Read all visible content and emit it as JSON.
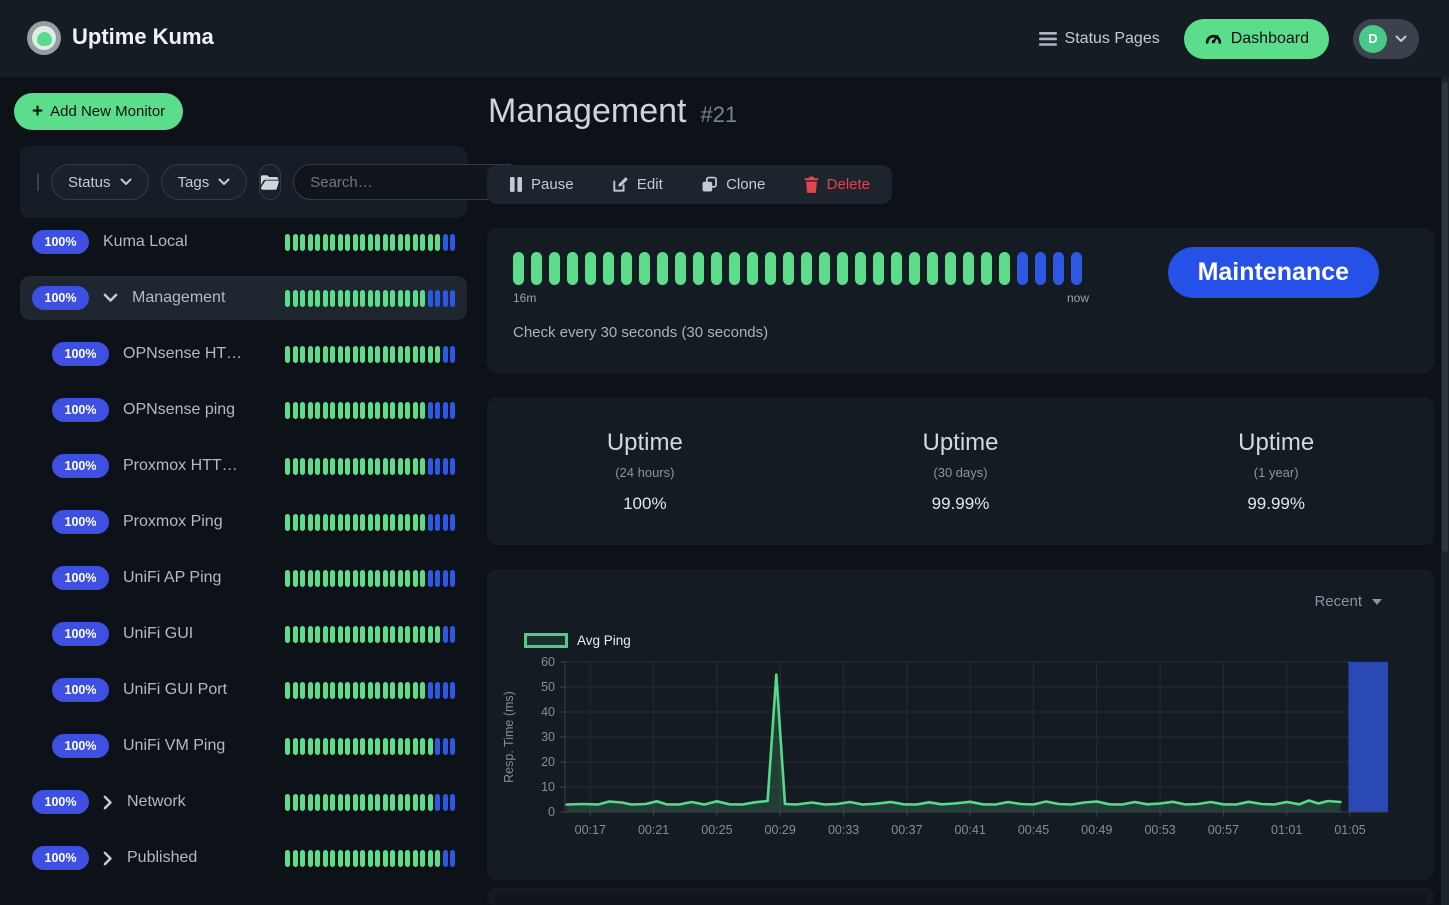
{
  "navbar": {
    "brand": "Uptime Kuma",
    "status_pages_label": "Status Pages",
    "dashboard_label": "Dashboard",
    "avatar_initial": "D"
  },
  "sidebar": {
    "add_new_monitor_label": "Add New Monitor",
    "filter": {
      "status_label": "Status",
      "tags_label": "Tags",
      "search_placeholder": "Search…"
    },
    "monitors": [
      {
        "name": "Kuma Local",
        "badge": "100%",
        "indent": false,
        "chevron": null,
        "selected": false,
        "beats_green": 21,
        "beats_blue": 2
      },
      {
        "name": "Management",
        "badge": "100%",
        "indent": false,
        "chevron": "down",
        "selected": true,
        "beats_green": 19,
        "beats_blue": 4
      },
      {
        "name": "OPNsense HT…",
        "badge": "100%",
        "indent": true,
        "chevron": null,
        "selected": false,
        "beats_green": 21,
        "beats_blue": 2
      },
      {
        "name": "OPNsense ping",
        "badge": "100%",
        "indent": true,
        "chevron": null,
        "selected": false,
        "beats_green": 19,
        "beats_blue": 4
      },
      {
        "name": "Proxmox HTT…",
        "badge": "100%",
        "indent": true,
        "chevron": null,
        "selected": false,
        "beats_green": 19,
        "beats_blue": 4
      },
      {
        "name": "Proxmox Ping",
        "badge": "100%",
        "indent": true,
        "chevron": null,
        "selected": false,
        "beats_green": 19,
        "beats_blue": 4
      },
      {
        "name": "UniFi AP Ping",
        "badge": "100%",
        "indent": true,
        "chevron": null,
        "selected": false,
        "beats_green": 19,
        "beats_blue": 4
      },
      {
        "name": "UniFi GUI",
        "badge": "100%",
        "indent": true,
        "chevron": null,
        "selected": false,
        "beats_green": 21,
        "beats_blue": 2
      },
      {
        "name": "UniFi GUI Port",
        "badge": "100%",
        "indent": true,
        "chevron": null,
        "selected": false,
        "beats_green": 19,
        "beats_blue": 4
      },
      {
        "name": "UniFi VM Ping",
        "badge": "100%",
        "indent": true,
        "chevron": null,
        "selected": false,
        "beats_green": 20,
        "beats_blue": 3
      },
      {
        "name": "Network",
        "badge": "100%",
        "indent": false,
        "chevron": "right",
        "selected": false,
        "beats_green": 20,
        "beats_blue": 3
      },
      {
        "name": "Published",
        "badge": "100%",
        "indent": false,
        "chevron": "right",
        "selected": false,
        "beats_green": 21,
        "beats_blue": 2
      }
    ]
  },
  "main": {
    "title": "Management",
    "monitor_id": "#21",
    "actions": {
      "pause": "Pause",
      "edit": "Edit",
      "clone": "Clone",
      "delete": "Delete"
    },
    "heartbeat": {
      "beats_green": 28,
      "beats_blue": 4,
      "start_label": "16m",
      "end_label": "now",
      "check_text": "Check every 30 seconds (30 seconds)",
      "maintenance_label": "Maintenance"
    },
    "uptime_stats": [
      {
        "title": "Uptime",
        "period": "(24 hours)",
        "value": "100%"
      },
      {
        "title": "Uptime",
        "period": "(30 days)",
        "value": "99.99%"
      },
      {
        "title": "Uptime",
        "period": "(1 year)",
        "value": "99.99%"
      }
    ],
    "chart_panel": {
      "range_label": "Recent",
      "legend_label": "Avg Ping"
    }
  },
  "chart_data": {
    "type": "area",
    "series_name": "Avg Ping",
    "ylabel": "Resp. Time (ms)",
    "ylim": [
      0,
      60
    ],
    "yticks": [
      0,
      10,
      20,
      30,
      40,
      50,
      60
    ],
    "xtick_labels": [
      "00:17",
      "00:21",
      "00:25",
      "00:29",
      "00:33",
      "00:37",
      "00:41",
      "00:45",
      "00:49",
      "00:53",
      "00:57",
      "01:01",
      "01:05"
    ],
    "xtick_minutes": [
      17,
      21,
      25,
      29,
      33,
      37,
      41,
      45,
      49,
      53,
      57,
      61,
      65
    ],
    "x_range_minutes": [
      15.4,
      67.4
    ],
    "grid": true,
    "legend_position": "top-left",
    "points": [
      [
        15.5,
        3
      ],
      [
        16.5,
        3.2
      ],
      [
        17.5,
        3
      ],
      [
        18.2,
        4.2
      ],
      [
        19,
        3.8
      ],
      [
        19.6,
        3
      ],
      [
        20.5,
        3.2
      ],
      [
        21.2,
        4.3
      ],
      [
        21.8,
        3.1
      ],
      [
        22.6,
        3
      ],
      [
        23.4,
        4
      ],
      [
        24.2,
        3
      ],
      [
        25,
        4.3
      ],
      [
        25.8,
        3.1
      ],
      [
        26.6,
        3
      ],
      [
        27.4,
        3.9
      ],
      [
        28.2,
        4.4
      ],
      [
        28.75,
        55
      ],
      [
        29.3,
        3.2
      ],
      [
        30,
        3
      ],
      [
        31,
        3.8
      ],
      [
        31.8,
        3
      ],
      [
        32.6,
        3.2
      ],
      [
        33.4,
        4
      ],
      [
        34.2,
        3
      ],
      [
        35,
        3.3
      ],
      [
        36,
        4
      ],
      [
        36.8,
        3.1
      ],
      [
        37.6,
        3
      ],
      [
        38.4,
        3.9
      ],
      [
        39.2,
        3.1
      ],
      [
        40,
        3.4
      ],
      [
        41,
        4.1
      ],
      [
        41.8,
        3.1
      ],
      [
        42.6,
        3
      ],
      [
        43.4,
        4
      ],
      [
        44.2,
        3.2
      ],
      [
        45,
        3
      ],
      [
        45.8,
        4.2
      ],
      [
        46.6,
        3.2
      ],
      [
        47.4,
        3
      ],
      [
        48.2,
        3.8
      ],
      [
        49,
        4.2
      ],
      [
        49.8,
        3.1
      ],
      [
        50.6,
        3
      ],
      [
        51.4,
        4
      ],
      [
        52.2,
        3.1
      ],
      [
        53,
        3.4
      ],
      [
        53.8,
        4.1
      ],
      [
        54.6,
        3
      ],
      [
        55.4,
        3.2
      ],
      [
        56.2,
        4
      ],
      [
        57,
        3.1
      ],
      [
        57.8,
        3
      ],
      [
        58.6,
        4.1
      ],
      [
        59.4,
        3.2
      ],
      [
        60.2,
        3
      ],
      [
        61,
        4
      ],
      [
        61.8,
        3.1
      ],
      [
        62.4,
        4.6
      ],
      [
        63,
        3.4
      ],
      [
        63.6,
        4.4
      ],
      [
        64.4,
        4
      ]
    ],
    "maintenance_band": {
      "from_minute": 64.9,
      "to_minute": 67.4
    }
  },
  "colors": {
    "up_green": "#5cdd8b",
    "maintenance_bar_blue": "#2e58e2",
    "badge_blue": "#3e50e2",
    "maintenance_button_blue": "#2551e9",
    "delete_red": "#e04550",
    "chart_line_green": "#57d98a",
    "chart_band_blue": "#2a49b5",
    "navbar_bg": "#161c24",
    "card_bg": "#151b23",
    "page_bg": "#0d1218"
  }
}
